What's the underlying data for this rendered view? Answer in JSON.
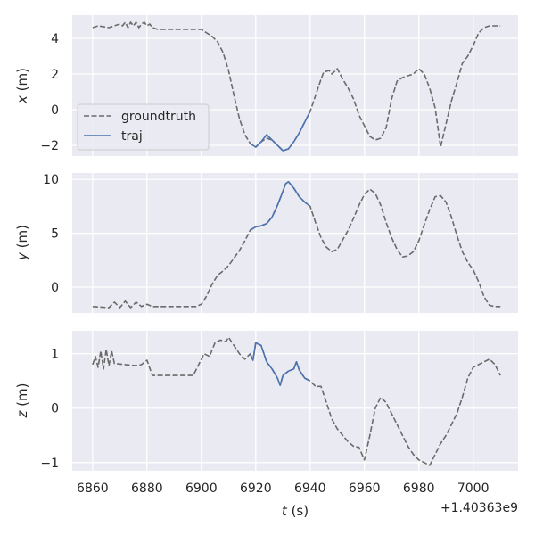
{
  "chart_data": [
    {
      "type": "line",
      "ylabel_var": "x",
      "ylabel_unit": " (m)",
      "ylim": [
        -2.6,
        5.3
      ],
      "yticks": [
        4,
        2,
        0,
        -2
      ],
      "ytick_labels": [
        "4",
        "2",
        "0",
        "−2"
      ],
      "xlim": [
        6852.5,
        7016.5
      ],
      "legend": {
        "placement": "lower-left",
        "entries": [
          "groundtruth",
          "traj"
        ]
      },
      "series": [
        {
          "name": "groundtruth",
          "style": "dashed",
          "color": "#6b6b6b",
          "x": [
            6860,
            6862,
            6866,
            6868,
            6870,
            6871,
            6872,
            6873,
            6874,
            6875,
            6876,
            6877,
            6878,
            6879,
            6880,
            6881,
            6882,
            6884,
            6890,
            6896,
            6900,
            6902,
            6904,
            6906,
            6908,
            6910,
            6912,
            6914,
            6916,
            6918,
            6920,
            6922,
            6924,
            6926,
            6928,
            6930,
            6932,
            6934,
            6936,
            6938,
            6940,
            6942,
            6944,
            6945,
            6947,
            6948,
            6950,
            6952,
            6954,
            6956,
            6958,
            6960,
            6962,
            6964,
            6966,
            6968,
            6970,
            6972,
            6974,
            6976,
            6978,
            6980,
            6982,
            6984,
            6986,
            6987,
            6988,
            6990,
            6992,
            6994,
            6996,
            6998,
            7000,
            7002,
            7004,
            7006,
            7008,
            7010
          ],
          "y": [
            4.6,
            4.7,
            4.6,
            4.7,
            4.8,
            4.7,
            4.9,
            4.6,
            4.9,
            4.7,
            4.9,
            4.6,
            4.8,
            4.9,
            4.7,
            4.8,
            4.6,
            4.5,
            4.5,
            4.5,
            4.5,
            4.3,
            4.1,
            3.8,
            3.2,
            2.2,
            0.8,
            -0.5,
            -1.4,
            -1.9,
            -2.1,
            -1.8,
            -1.6,
            -1.7,
            -2.0,
            -2.3,
            -2.2,
            -1.8,
            -1.3,
            -0.7,
            -0.1,
            0.8,
            1.7,
            2.1,
            2.2,
            2.0,
            2.3,
            1.7,
            1.2,
            0.6,
            -0.3,
            -0.9,
            -1.5,
            -1.7,
            -1.6,
            -1.0,
            0.6,
            1.6,
            1.8,
            1.9,
            2.0,
            2.3,
            2.0,
            1.2,
            0.1,
            -1.0,
            -2.1,
            -0.8,
            0.5,
            1.5,
            2.6,
            3.0,
            3.6,
            4.3,
            4.6,
            4.7,
            4.7,
            4.7
          ]
        },
        {
          "name": "traj",
          "style": "solid",
          "color": "#4c72b0",
          "x": [
            6918,
            6920,
            6922,
            6924,
            6926,
            6928,
            6930,
            6932,
            6934,
            6936,
            6938,
            6940
          ],
          "y": [
            -1.9,
            -2.1,
            -1.8,
            -1.4,
            -1.7,
            -2.0,
            -2.3,
            -2.2,
            -1.8,
            -1.3,
            -0.7,
            -0.1
          ]
        }
      ]
    },
    {
      "type": "line",
      "ylabel_var": "y",
      "ylabel_unit": " (m)",
      "ylim": [
        -2.4,
        10.6
      ],
      "yticks": [
        10,
        5,
        0
      ],
      "ytick_labels": [
        "10",
        "5",
        "0"
      ],
      "xlim": [
        6852.5,
        7016.5
      ],
      "series": [
        {
          "name": "groundtruth",
          "style": "dashed",
          "color": "#6b6b6b",
          "x": [
            6860,
            6866,
            6868,
            6870,
            6872,
            6874,
            6876,
            6878,
            6880,
            6882,
            6890,
            6898,
            6900,
            6902,
            6904,
            6906,
            6908,
            6910,
            6912,
            6914,
            6916,
            6918,
            6920,
            6922,
            6924,
            6926,
            6928,
            6930,
            6931,
            6932,
            6934,
            6936,
            6938,
            6940,
            6942,
            6944,
            6946,
            6948,
            6950,
            6952,
            6954,
            6956,
            6958,
            6960,
            6962,
            6964,
            6966,
            6968,
            6970,
            6972,
            6974,
            6976,
            6978,
            6980,
            6982,
            6984,
            6986,
            6988,
            6990,
            6992,
            6994,
            6996,
            6998,
            7000,
            7002,
            7004,
            7006,
            7008,
            7010
          ],
          "y": [
            -1.8,
            -1.9,
            -1.4,
            -1.9,
            -1.3,
            -1.9,
            -1.4,
            -1.8,
            -1.6,
            -1.8,
            -1.8,
            -1.8,
            -1.6,
            -0.8,
            0.3,
            1.1,
            1.5,
            2.0,
            2.7,
            3.4,
            4.3,
            5.3,
            5.6,
            5.7,
            5.9,
            6.5,
            7.6,
            8.9,
            9.6,
            9.8,
            9.2,
            8.4,
            7.9,
            7.5,
            6.0,
            4.6,
            3.7,
            3.3,
            3.5,
            4.4,
            5.3,
            6.4,
            7.6,
            8.6,
            9.1,
            8.7,
            7.6,
            6.0,
            4.6,
            3.5,
            2.8,
            2.9,
            3.3,
            4.3,
            5.8,
            7.2,
            8.4,
            8.5,
            7.9,
            6.5,
            4.8,
            3.3,
            2.3,
            1.6,
            0.5,
            -0.9,
            -1.7,
            -1.8,
            -1.8
          ]
        },
        {
          "name": "traj",
          "style": "solid",
          "color": "#4c72b0",
          "x": [
            6918,
            6920,
            6922,
            6924,
            6926,
            6928,
            6930,
            6931,
            6932,
            6934,
            6936,
            6938,
            6940
          ],
          "y": [
            5.3,
            5.6,
            5.7,
            5.9,
            6.5,
            7.6,
            8.9,
            9.6,
            9.8,
            9.2,
            8.4,
            7.9,
            7.5
          ]
        }
      ]
    },
    {
      "type": "line",
      "ylabel_var": "z",
      "ylabel_unit": " (m)",
      "ylim": [
        -1.15,
        1.42
      ],
      "yticks": [
        1,
        0,
        -1
      ],
      "ytick_labels": [
        "1",
        "0",
        "−1"
      ],
      "xlim": [
        6852.5,
        7016.5
      ],
      "xticks": [
        6860,
        6880,
        6900,
        6920,
        6940,
        6960,
        6980,
        7000
      ],
      "xtick_labels": [
        "6860",
        "6880",
        "6900",
        "6920",
        "6940",
        "6960",
        "6980",
        "7000"
      ],
      "xlabel_var": "t",
      "xlabel_unit": " (s)",
      "offset_label": "+1.40363e9",
      "series": [
        {
          "name": "groundtruth",
          "style": "dashed",
          "color": "#6b6b6b",
          "x": [
            6860,
            6861,
            6862,
            6863,
            6864,
            6865,
            6866,
            6867,
            6868,
            6872,
            6876,
            6878,
            6880,
            6882,
            6884,
            6890,
            6897,
            6899,
            6901,
            6903,
            6905,
            6907,
            6909,
            6910,
            6912,
            6914,
            6916,
            6918,
            6919,
            6920,
            6922,
            6924,
            6926,
            6928,
            6929,
            6930,
            6932,
            6934,
            6935,
            6936,
            6938,
            6940,
            6942,
            6944,
            6946,
            6948,
            6950,
            6952,
            6954,
            6956,
            6958,
            6960,
            6962,
            6964,
            6966,
            6968,
            6970,
            6972,
            6974,
            6976,
            6978,
            6980,
            6982,
            6984,
            6986,
            6988,
            6990,
            6992,
            6994,
            6996,
            6998,
            7000,
            7002,
            7004,
            7006,
            7008,
            7010
          ],
          "y": [
            0.8,
            0.95,
            0.75,
            1.05,
            0.72,
            1.08,
            0.78,
            1.05,
            0.82,
            0.8,
            0.78,
            0.8,
            0.88,
            0.6,
            0.6,
            0.6,
            0.6,
            0.8,
            1.0,
            0.95,
            1.2,
            1.25,
            1.22,
            1.3,
            1.15,
            1.0,
            0.9,
            1.0,
            0.88,
            1.2,
            1.15,
            0.85,
            0.72,
            0.55,
            0.42,
            0.6,
            0.68,
            0.72,
            0.85,
            0.7,
            0.55,
            0.5,
            0.4,
            0.4,
            0.1,
            -0.2,
            -0.38,
            -0.5,
            -0.62,
            -0.7,
            -0.72,
            -0.95,
            -0.5,
            0.0,
            0.2,
            0.1,
            -0.1,
            -0.3,
            -0.5,
            -0.7,
            -0.85,
            -0.95,
            -1.0,
            -1.05,
            -0.85,
            -0.65,
            -0.5,
            -0.3,
            -0.1,
            0.2,
            0.55,
            0.75,
            0.8,
            0.85,
            0.9,
            0.8,
            0.6
          ]
        },
        {
          "name": "traj",
          "style": "solid",
          "color": "#4c72b0",
          "x": [
            6918,
            6919,
            6920,
            6922,
            6924,
            6926,
            6928,
            6929,
            6930,
            6932,
            6934,
            6935,
            6936,
            6938,
            6940
          ],
          "y": [
            1.0,
            0.88,
            1.2,
            1.15,
            0.85,
            0.72,
            0.55,
            0.42,
            0.6,
            0.68,
            0.72,
            0.85,
            0.7,
            0.55,
            0.5
          ]
        }
      ]
    }
  ]
}
